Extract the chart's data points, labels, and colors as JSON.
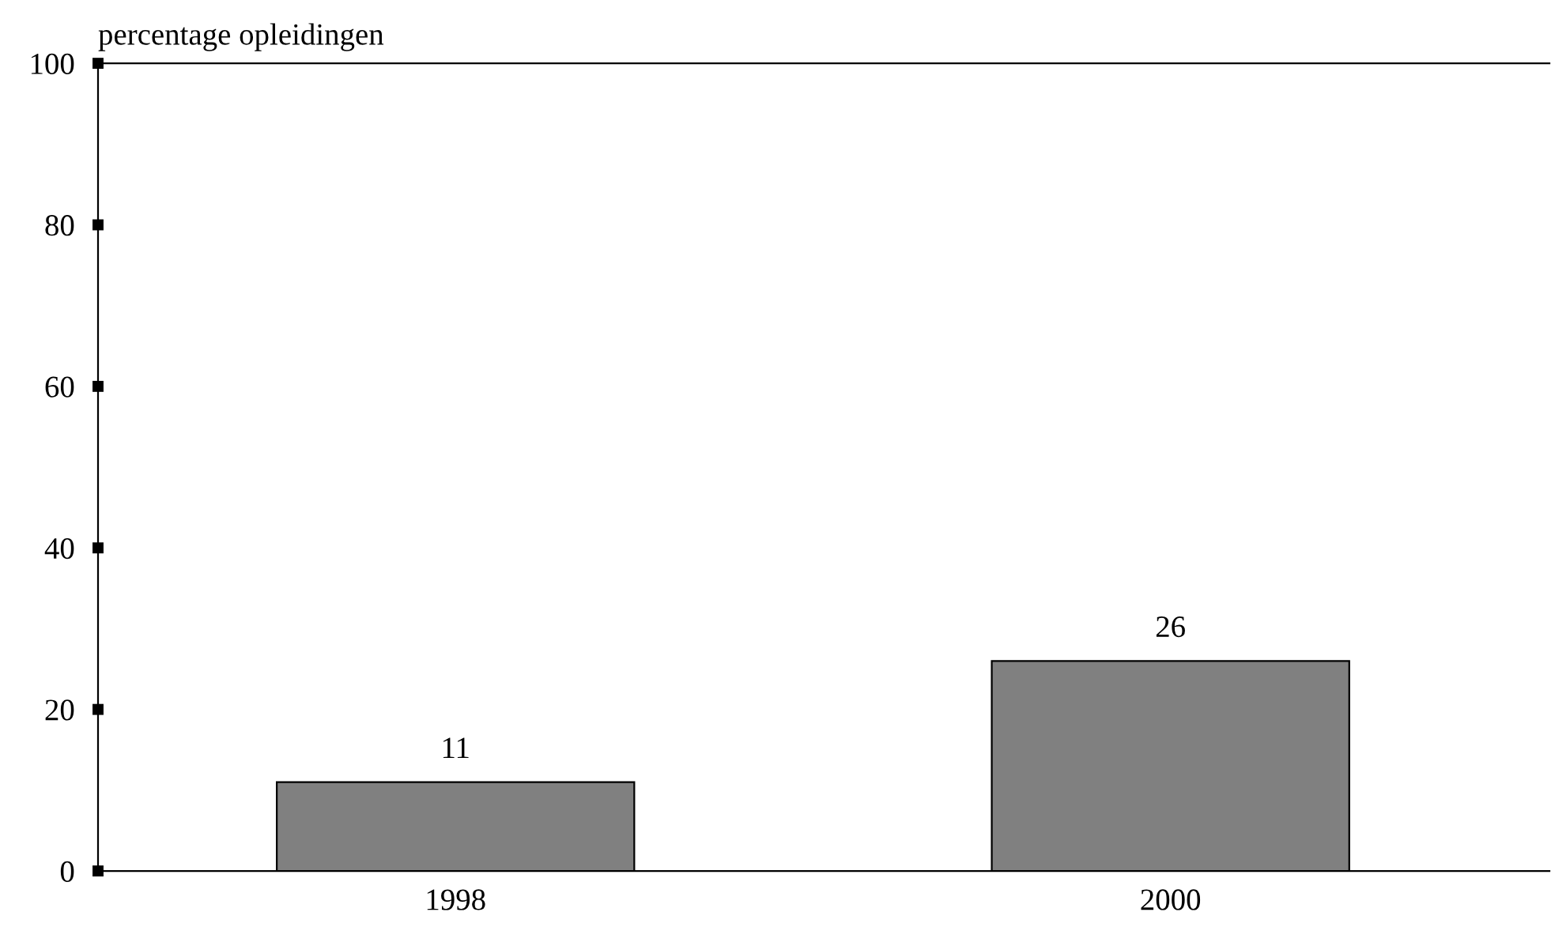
{
  "chart_data": {
    "type": "bar",
    "ylabel": "percentage opleidingen",
    "categories": [
      "1998",
      "2000"
    ],
    "values": [
      11,
      26
    ],
    "color": "#808080",
    "ylim": [
      0,
      100
    ],
    "yticks": [
      0,
      20,
      40,
      60,
      80,
      100
    ],
    "grid": false,
    "data_labels": true
  }
}
